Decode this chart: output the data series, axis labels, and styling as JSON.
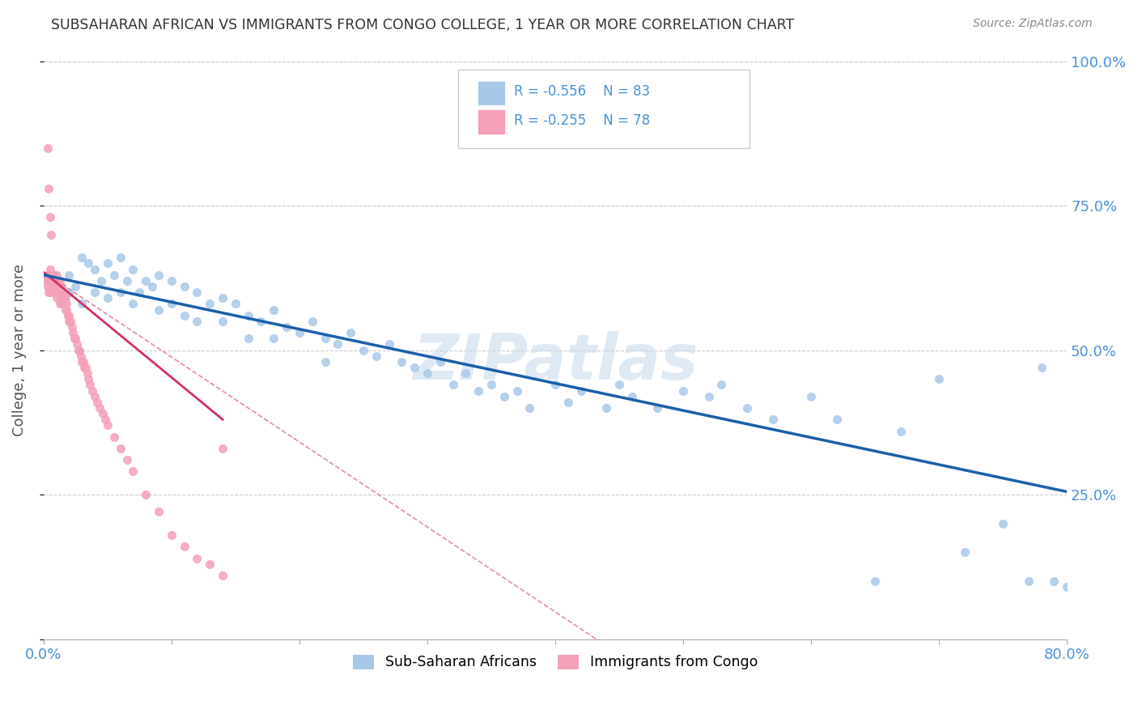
{
  "title": "SUBSAHARAN AFRICAN VS IMMIGRANTS FROM CONGO COLLEGE, 1 YEAR OR MORE CORRELATION CHART",
  "source": "Source: ZipAtlas.com",
  "ylabel": "College, 1 year or more",
  "xlim": [
    0.0,
    0.8
  ],
  "ylim": [
    0.0,
    1.0
  ],
  "blue_color": "#a8c8e8",
  "pink_color": "#f4a0b8",
  "blue_line_color": "#1a5fa8",
  "pink_line_color": "#d43060",
  "pink_dash_color": "#e888a8",
  "watermark": "ZIPatlas",
  "watermark_color": "#c5d8ec",
  "legend_r1": "R = -0.556",
  "legend_n1": "N = 83",
  "legend_r2": "R = -0.255",
  "legend_n2": "N = 78",
  "blue_scatter_x": [
    0.01,
    0.015,
    0.02,
    0.02,
    0.025,
    0.03,
    0.03,
    0.035,
    0.04,
    0.04,
    0.045,
    0.05,
    0.05,
    0.055,
    0.06,
    0.06,
    0.065,
    0.07,
    0.07,
    0.075,
    0.08,
    0.085,
    0.09,
    0.09,
    0.1,
    0.1,
    0.11,
    0.11,
    0.12,
    0.12,
    0.13,
    0.14,
    0.14,
    0.15,
    0.16,
    0.16,
    0.17,
    0.18,
    0.18,
    0.19,
    0.2,
    0.21,
    0.22,
    0.22,
    0.23,
    0.24,
    0.25,
    0.26,
    0.27,
    0.28,
    0.29,
    0.3,
    0.31,
    0.32,
    0.33,
    0.34,
    0.35,
    0.36,
    0.37,
    0.38,
    0.4,
    0.41,
    0.42,
    0.44,
    0.45,
    0.46,
    0.48,
    0.5,
    0.52,
    0.53,
    0.55,
    0.57,
    0.6,
    0.62,
    0.65,
    0.67,
    0.7,
    0.72,
    0.75,
    0.77,
    0.78,
    0.79,
    0.8
  ],
  "blue_scatter_y": [
    0.62,
    0.58,
    0.63,
    0.6,
    0.61,
    0.66,
    0.58,
    0.65,
    0.64,
    0.6,
    0.62,
    0.65,
    0.59,
    0.63,
    0.66,
    0.6,
    0.62,
    0.64,
    0.58,
    0.6,
    0.62,
    0.61,
    0.63,
    0.57,
    0.62,
    0.58,
    0.61,
    0.56,
    0.6,
    0.55,
    0.58,
    0.59,
    0.55,
    0.58,
    0.56,
    0.52,
    0.55,
    0.57,
    0.52,
    0.54,
    0.53,
    0.55,
    0.52,
    0.48,
    0.51,
    0.53,
    0.5,
    0.49,
    0.51,
    0.48,
    0.47,
    0.46,
    0.48,
    0.44,
    0.46,
    0.43,
    0.44,
    0.42,
    0.43,
    0.4,
    0.44,
    0.41,
    0.43,
    0.4,
    0.44,
    0.42,
    0.4,
    0.43,
    0.42,
    0.44,
    0.4,
    0.38,
    0.42,
    0.38,
    0.1,
    0.36,
    0.45,
    0.15,
    0.2,
    0.1,
    0.47,
    0.1,
    0.09
  ],
  "pink_scatter_x": [
    0.002,
    0.003,
    0.003,
    0.004,
    0.004,
    0.005,
    0.005,
    0.005,
    0.006,
    0.006,
    0.007,
    0.007,
    0.008,
    0.008,
    0.009,
    0.009,
    0.01,
    0.01,
    0.01,
    0.011,
    0.011,
    0.012,
    0.012,
    0.013,
    0.013,
    0.013,
    0.014,
    0.014,
    0.015,
    0.015,
    0.016,
    0.016,
    0.017,
    0.017,
    0.018,
    0.018,
    0.019,
    0.02,
    0.02,
    0.021,
    0.022,
    0.023,
    0.024,
    0.025,
    0.026,
    0.027,
    0.028,
    0.029,
    0.03,
    0.031,
    0.032,
    0.033,
    0.034,
    0.035,
    0.036,
    0.038,
    0.04,
    0.042,
    0.044,
    0.046,
    0.048,
    0.05,
    0.055,
    0.06,
    0.065,
    0.07,
    0.08,
    0.09,
    0.1,
    0.11,
    0.12,
    0.13,
    0.14,
    0.003,
    0.004,
    0.005,
    0.006,
    0.14
  ],
  "pink_scatter_y": [
    0.62,
    0.61,
    0.63,
    0.6,
    0.62,
    0.64,
    0.62,
    0.6,
    0.63,
    0.61,
    0.62,
    0.6,
    0.63,
    0.61,
    0.62,
    0.6,
    0.61,
    0.63,
    0.59,
    0.62,
    0.6,
    0.61,
    0.6,
    0.62,
    0.6,
    0.58,
    0.61,
    0.59,
    0.6,
    0.58,
    0.59,
    0.58,
    0.59,
    0.57,
    0.58,
    0.57,
    0.56,
    0.56,
    0.55,
    0.55,
    0.54,
    0.53,
    0.52,
    0.52,
    0.51,
    0.5,
    0.5,
    0.49,
    0.48,
    0.48,
    0.47,
    0.47,
    0.46,
    0.45,
    0.44,
    0.43,
    0.42,
    0.41,
    0.4,
    0.39,
    0.38,
    0.37,
    0.35,
    0.33,
    0.31,
    0.29,
    0.25,
    0.22,
    0.18,
    0.16,
    0.14,
    0.13,
    0.11,
    0.85,
    0.78,
    0.73,
    0.7,
    0.33
  ]
}
